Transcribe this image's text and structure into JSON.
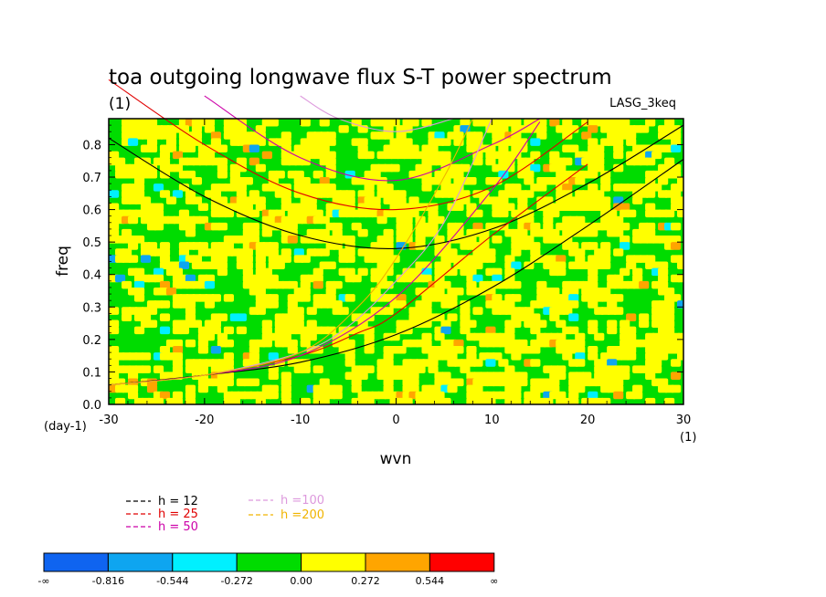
{
  "chart_data": {
    "type": "heatmap",
    "title": "toa outgoing longwave flux S-T power spectrum",
    "subtitle": "(1)",
    "model": "LASG_3keq",
    "xlabel": "wvn",
    "ylabel": "freq",
    "x_unit": "(1)",
    "y_unit": "(day-1)",
    "xlim": [
      -30,
      30
    ],
    "ylim": [
      0,
      0.88
    ],
    "x_ticks": [
      "-30",
      "-20",
      "-10",
      "0",
      "10",
      "20",
      "30"
    ],
    "y_ticks": [
      "0.0",
      "0.1",
      "0.2",
      "0.3",
      "0.4",
      "0.5",
      "0.6",
      "0.7",
      "0.8"
    ],
    "colorbar": {
      "labels": [
        "-∞",
        "-0.816",
        "-0.544",
        "-0.272",
        "0.00",
        "0.272",
        "0.544",
        "∞"
      ],
      "colors": [
        "#0f64f0",
        "#0ea5f0",
        "#00f0ff",
        "#00dc00",
        "#ffff00",
        "#ffa500",
        "#ff0000"
      ]
    },
    "field_description": "Noisy normalized power field; mostly green (-0.272..0.00) and yellow (0.00..0.272) with sparse orange and cyan patches.",
    "legend": [
      {
        "label": "h = 12",
        "color": "#000000"
      },
      {
        "label": "h = 25",
        "color": "#e00000"
      },
      {
        "label": "h = 50",
        "color": "#cc00a8"
      },
      {
        "label": "h =100",
        "color": "#dd99dd"
      },
      {
        "label": "h =200",
        "color": "#f0b400"
      }
    ],
    "dispersion_curves": [
      {
        "h": 12,
        "color": "#000000",
        "kelvin": [
          [
            -30,
            0.06
          ],
          [
            -20,
            0.09
          ],
          [
            -10,
            0.13
          ],
          [
            0,
            0.215
          ],
          [
            10,
            0.36
          ],
          [
            20,
            0.55
          ],
          [
            30,
            0.755
          ]
        ],
        "ig": [
          [
            -30,
            0.82
          ],
          [
            -20,
            0.64
          ],
          [
            -10,
            0.52
          ],
          [
            0,
            0.48
          ],
          [
            10,
            0.54
          ],
          [
            20,
            0.68
          ],
          [
            30,
            0.86
          ]
        ]
      },
      {
        "h": 25,
        "color": "#e00000",
        "kelvin": [
          [
            -30,
            0.06
          ],
          [
            -20,
            0.09
          ],
          [
            -10,
            0.15
          ],
          [
            -4,
            0.22
          ],
          [
            0,
            0.28
          ],
          [
            10,
            0.52
          ],
          [
            20,
            0.74
          ]
        ],
        "ig": [
          [
            -30,
            1.0
          ],
          [
            -20,
            0.8
          ],
          [
            -10,
            0.65
          ],
          [
            0,
            0.6
          ],
          [
            10,
            0.67
          ],
          [
            20,
            0.87
          ]
        ]
      },
      {
        "h": 50,
        "color": "#cc00a8",
        "kelvin": [
          [
            -30,
            0.06
          ],
          [
            -20,
            0.09
          ],
          [
            -10,
            0.15
          ],
          [
            0,
            0.33
          ],
          [
            10,
            0.66
          ],
          [
            15,
            0.87
          ]
        ],
        "ig": [
          [
            -20,
            0.95
          ],
          [
            -10,
            0.76
          ],
          [
            0,
            0.69
          ],
          [
            10,
            0.8
          ],
          [
            15,
            0.88
          ]
        ]
      },
      {
        "h": 100,
        "color": "#dd99dd",
        "kelvin": [
          [
            -30,
            0.06
          ],
          [
            -20,
            0.09
          ],
          [
            -10,
            0.16
          ],
          [
            -5,
            0.24
          ],
          [
            0,
            0.38
          ],
          [
            5,
            0.56
          ],
          [
            10,
            0.88
          ]
        ],
        "ig": [
          [
            -10,
            0.95
          ],
          [
            -6,
            0.88
          ],
          [
            0,
            0.84
          ],
          [
            6,
            0.88
          ]
        ]
      },
      {
        "h": 200,
        "color": "#f0b400",
        "kelvin": [
          [
            -30,
            0.06
          ],
          [
            -20,
            0.09
          ],
          [
            -10,
            0.16
          ],
          [
            -4,
            0.3
          ],
          [
            0,
            0.45
          ],
          [
            5,
            0.7
          ],
          [
            8,
            0.88
          ]
        ],
        "ig": []
      }
    ]
  }
}
